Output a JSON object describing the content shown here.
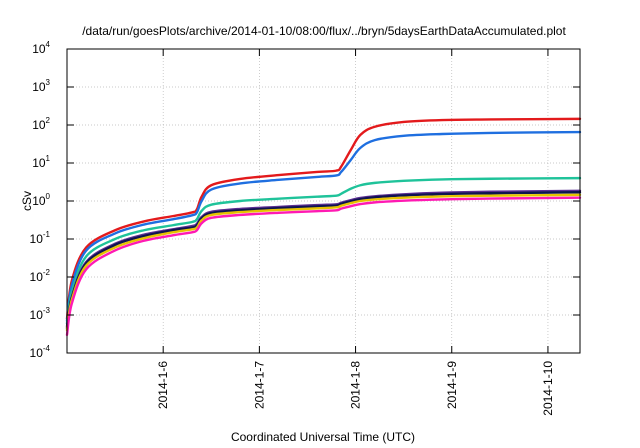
{
  "chart_data": {
    "type": "line",
    "title": "/data/run/goesPlots/archive/2014-01-10/08:00/flux/../bryn/5daysEarthDataAccumulated.plot",
    "xlabel": "Coordinated Universal Time (UTC)",
    "ylabel": "cSv",
    "y_scale": "log",
    "ylim": [
      0.0001,
      10000
    ],
    "y_ticks": [
      {
        "base": "10",
        "exp": "-4",
        "value": 0.0001
      },
      {
        "base": "10",
        "exp": "-3",
        "value": 0.001
      },
      {
        "base": "10",
        "exp": "-2",
        "value": 0.01
      },
      {
        "base": "10",
        "exp": "-1",
        "value": 0.1
      },
      {
        "base": "10",
        "exp": "0",
        "value": 1
      },
      {
        "base": "10",
        "exp": "1",
        "value": 10
      },
      {
        "base": "10",
        "exp": "2",
        "value": 100
      },
      {
        "base": "10",
        "exp": "3",
        "value": 1000
      },
      {
        "base": "10",
        "exp": "4",
        "value": 10000
      }
    ],
    "xlim": [
      "2014-01-05 00:00",
      "2014-01-10 08:00"
    ],
    "x_ticks": [
      {
        "label": "2014-1-6",
        "value": "2014-01-06"
      },
      {
        "label": "2014-1-7",
        "value": "2014-01-07"
      },
      {
        "label": "2014-1-8",
        "value": "2014-01-08"
      },
      {
        "label": "2014-1-9",
        "value": "2014-01-09"
      },
      {
        "label": "2014-1-10",
        "value": "2014-01-10"
      }
    ],
    "grid": true,
    "series": [
      {
        "color": "#e31a1c",
        "x": [
          "2014-01-05 00:00",
          "2014-01-05 01:12",
          "2014-01-05 04:48",
          "2014-01-05 12:00",
          "2014-01-05 19:12",
          "2014-01-06 02:24",
          "2014-01-06 07:12",
          "2014-01-06 08:24",
          "2014-01-06 09:36",
          "2014-01-06 12:00",
          "2014-01-06 19:12",
          "2014-01-07 04:48",
          "2014-01-07 14:24",
          "2014-01-07 19:12",
          "2014-01-07 20:24",
          "2014-01-07 22:48",
          "2014-01-08 01:12",
          "2014-01-08 04:48",
          "2014-01-08 12:00",
          "2014-01-08 21:36",
          "2014-01-09 09:36",
          "2014-01-10 08:00"
        ],
        "values": [
          0.0008,
          0.008,
          0.06,
          0.17,
          0.29,
          0.4,
          0.5,
          0.6,
          1.3,
          2.6,
          3.8,
          4.8,
          5.8,
          6.3,
          8,
          22,
          55,
          90,
          120,
          135,
          140,
          145
        ]
      },
      {
        "color": "#1f6fe0",
        "x": [
          "2014-01-05 00:00",
          "2014-01-05 01:12",
          "2014-01-05 04:48",
          "2014-01-05 12:00",
          "2014-01-05 19:12",
          "2014-01-06 02:24",
          "2014-01-06 07:12",
          "2014-01-06 08:24",
          "2014-01-06 09:36",
          "2014-01-06 12:00",
          "2014-01-06 19:12",
          "2014-01-07 04:48",
          "2014-01-07 14:24",
          "2014-01-07 19:12",
          "2014-01-07 20:24",
          "2014-01-07 22:48",
          "2014-01-08 01:12",
          "2014-01-08 04:48",
          "2014-01-08 12:00",
          "2014-01-08 21:36",
          "2014-01-09 09:36",
          "2014-01-10 08:00"
        ],
        "values": [
          0.0007,
          0.006,
          0.05,
          0.14,
          0.24,
          0.33,
          0.42,
          0.5,
          1.0,
          2.0,
          2.9,
          3.6,
          4.3,
          4.7,
          5.8,
          12,
          25,
          40,
          52,
          58,
          62,
          65
        ]
      },
      {
        "color": "#1fc39a",
        "x": [
          "2014-01-05 00:00",
          "2014-01-05 01:12",
          "2014-01-05 04:48",
          "2014-01-05 12:00",
          "2014-01-05 19:12",
          "2014-01-06 02:24",
          "2014-01-06 07:12",
          "2014-01-06 08:24",
          "2014-01-06 09:36",
          "2014-01-06 12:00",
          "2014-01-06 19:12",
          "2014-01-07 04:48",
          "2014-01-07 14:24",
          "2014-01-07 19:12",
          "2014-01-07 20:24",
          "2014-01-07 22:48",
          "2014-01-08 01:12",
          "2014-01-08 04:48",
          "2014-01-08 12:00",
          "2014-01-08 21:36",
          "2014-01-09 09:36",
          "2014-01-10 08:00"
        ],
        "values": [
          0.0006,
          0.004,
          0.035,
          0.1,
          0.17,
          0.23,
          0.28,
          0.33,
          0.55,
          0.8,
          1.0,
          1.15,
          1.3,
          1.38,
          1.55,
          2.1,
          2.6,
          3.0,
          3.4,
          3.7,
          3.85,
          4.0
        ]
      },
      {
        "color": "#5a2d91",
        "x": [
          "2014-01-05 00:00",
          "2014-01-05 01:12",
          "2014-01-05 04:48",
          "2014-01-05 12:00",
          "2014-01-05 19:12",
          "2014-01-06 02:24",
          "2014-01-06 07:12",
          "2014-01-06 08:24",
          "2014-01-06 09:36",
          "2014-01-06 12:00",
          "2014-01-06 19:12",
          "2014-01-07 04:48",
          "2014-01-07 14:24",
          "2014-01-07 19:12",
          "2014-01-07 20:24",
          "2014-01-07 22:48",
          "2014-01-08 01:12",
          "2014-01-08 04:48",
          "2014-01-08 12:00",
          "2014-01-08 21:36",
          "2014-01-09 09:36",
          "2014-01-10 08:00"
        ],
        "values": [
          0.0005,
          0.003,
          0.025,
          0.075,
          0.13,
          0.18,
          0.22,
          0.25,
          0.38,
          0.52,
          0.62,
          0.7,
          0.78,
          0.82,
          0.9,
          1.05,
          1.2,
          1.33,
          1.5,
          1.65,
          1.75,
          1.85
        ]
      },
      {
        "color": "#0e1450",
        "x": [
          "2014-01-05 00:00",
          "2014-01-05 01:12",
          "2014-01-05 04:48",
          "2014-01-05 12:00",
          "2014-01-05 19:12",
          "2014-01-06 02:24",
          "2014-01-06 07:12",
          "2014-01-06 08:24",
          "2014-01-06 09:36",
          "2014-01-06 12:00",
          "2014-01-06 19:12",
          "2014-01-07 04:48",
          "2014-01-07 14:24",
          "2014-01-07 19:12",
          "2014-01-07 20:24",
          "2014-01-07 22:48",
          "2014-01-08 01:12",
          "2014-01-08 04:48",
          "2014-01-08 12:00",
          "2014-01-08 21:36",
          "2014-01-09 09:36",
          "2014-01-10 08:00"
        ],
        "values": [
          0.00045,
          0.0028,
          0.023,
          0.07,
          0.12,
          0.17,
          0.2,
          0.23,
          0.35,
          0.48,
          0.57,
          0.65,
          0.72,
          0.76,
          0.84,
          0.98,
          1.12,
          1.25,
          1.4,
          1.52,
          1.6,
          1.7
        ]
      },
      {
        "color": "#e6c300",
        "x": [
          "2014-01-05 00:00",
          "2014-01-05 01:12",
          "2014-01-05 04:48",
          "2014-01-05 12:00",
          "2014-01-05 19:12",
          "2014-01-06 02:24",
          "2014-01-06 07:12",
          "2014-01-06 08:24",
          "2014-01-06 09:36",
          "2014-01-06 12:00",
          "2014-01-06 19:12",
          "2014-01-07 04:48",
          "2014-01-07 14:24",
          "2014-01-07 19:12",
          "2014-01-07 20:24",
          "2014-01-07 22:48",
          "2014-01-08 01:12",
          "2014-01-08 04:48",
          "2014-01-08 12:00",
          "2014-01-08 21:36",
          "2014-01-09 09:36",
          "2014-01-10 08:00"
        ],
        "values": [
          0.0004,
          0.0025,
          0.02,
          0.06,
          0.105,
          0.15,
          0.18,
          0.2,
          0.31,
          0.43,
          0.51,
          0.58,
          0.64,
          0.68,
          0.75,
          0.88,
          1.0,
          1.1,
          1.22,
          1.32,
          1.38,
          1.45
        ]
      },
      {
        "color": "#ff1ab3",
        "x": [
          "2014-01-05 00:00",
          "2014-01-05 01:12",
          "2014-01-05 04:48",
          "2014-01-05 12:00",
          "2014-01-05 19:12",
          "2014-01-06 02:24",
          "2014-01-06 07:12",
          "2014-01-06 08:24",
          "2014-01-06 09:36",
          "2014-01-06 12:00",
          "2014-01-06 19:12",
          "2014-01-07 04:48",
          "2014-01-07 14:24",
          "2014-01-07 19:12",
          "2014-01-07 20:24",
          "2014-01-07 22:48",
          "2014-01-08 01:12",
          "2014-01-08 04:48",
          "2014-01-08 12:00",
          "2014-01-08 21:36",
          "2014-01-09 09:36",
          "2014-01-10 08:00"
        ],
        "values": [
          0.0003,
          0.002,
          0.016,
          0.05,
          0.09,
          0.125,
          0.15,
          0.17,
          0.26,
          0.36,
          0.43,
          0.49,
          0.54,
          0.57,
          0.63,
          0.73,
          0.83,
          0.92,
          1.02,
          1.1,
          1.16,
          1.22
        ]
      }
    ]
  }
}
